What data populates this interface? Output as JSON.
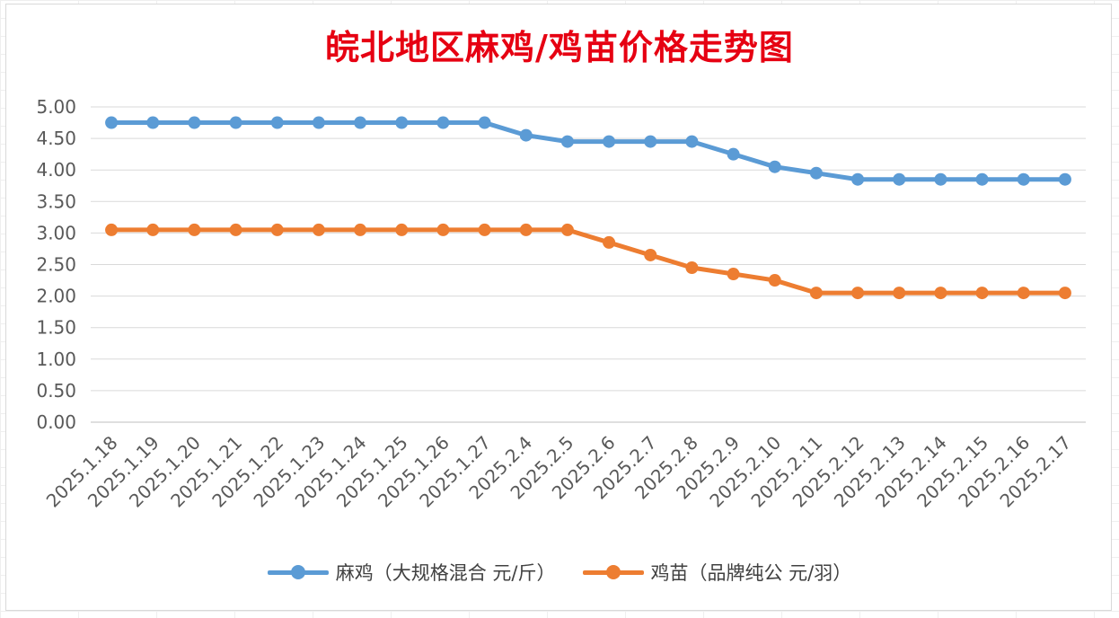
{
  "chart_data": {
    "type": "line",
    "title": "皖北地区麻鸡/鸡苗价格走势图",
    "categories": [
      "2025.1.18",
      "2025.1.19",
      "2025.1.20",
      "2025.1.21",
      "2025.1.22",
      "2025.1.23",
      "2025.1.24",
      "2025.1.25",
      "2025.1.26",
      "2025.1.27",
      "2025.2.4",
      "2025.2.5",
      "2025.2.6",
      "2025.2.7",
      "2025.2.8",
      "2025.2.9",
      "2025.2.10",
      "2025.2.11",
      "2025.2.12",
      "2025.2.13",
      "2025.2.14",
      "2025.2.15",
      "2025.2.16",
      "2025.2.17"
    ],
    "series": [
      {
        "name": "麻鸡（大规格混合 元/斤）",
        "color": "#5b9bd5",
        "values": [
          4.75,
          4.75,
          4.75,
          4.75,
          4.75,
          4.75,
          4.75,
          4.75,
          4.75,
          4.75,
          4.55,
          4.45,
          4.45,
          4.45,
          4.45,
          4.25,
          4.05,
          3.95,
          3.85,
          3.85,
          3.85,
          3.85,
          3.85,
          3.85
        ]
      },
      {
        "name": "鸡苗（品牌纯公 元/羽）",
        "color": "#ed7d31",
        "values": [
          3.05,
          3.05,
          3.05,
          3.05,
          3.05,
          3.05,
          3.05,
          3.05,
          3.05,
          3.05,
          3.05,
          3.05,
          2.85,
          2.65,
          2.45,
          2.35,
          2.25,
          2.05,
          2.05,
          2.05,
          2.05,
          2.05,
          2.05,
          2.05
        ]
      }
    ],
    "y_ticks": [
      "0.00",
      "0.50",
      "1.00",
      "1.50",
      "2.00",
      "2.50",
      "3.00",
      "3.50",
      "4.00",
      "4.50",
      "5.00"
    ],
    "ylim": [
      0,
      5
    ],
    "grid": true,
    "legend_position": "bottom"
  }
}
